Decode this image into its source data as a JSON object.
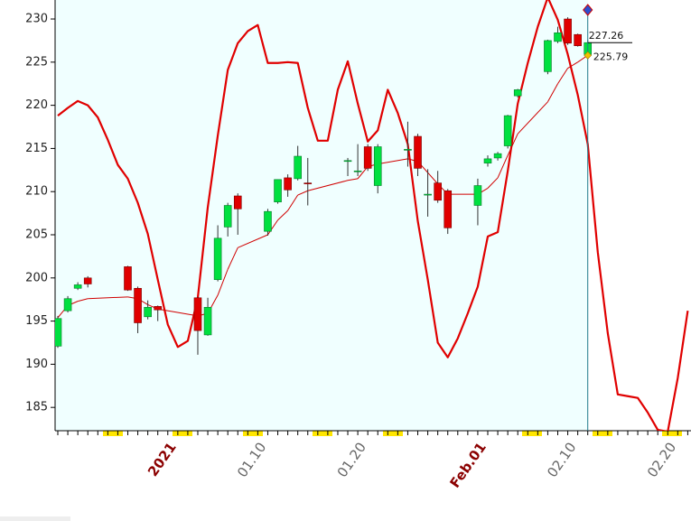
{
  "chart_data": {
    "type": "candlestick",
    "categories": [
      null,
      null,
      null,
      null,
      null,
      null,
      null,
      null,
      null,
      null,
      null,
      "2021",
      null,
      null,
      null,
      null,
      null,
      null,
      null,
      null,
      "01.10",
      null,
      null,
      null,
      null,
      null,
      null,
      null,
      null,
      null,
      "01.20",
      null,
      null,
      null,
      null,
      null,
      null,
      null,
      null,
      null,
      null,
      null,
      "Feb.01",
      null,
      null,
      null,
      null,
      null,
      null,
      null,
      null,
      "02.10",
      null,
      null,
      null,
      null,
      null,
      null,
      null,
      null,
      null,
      "02.20",
      null,
      null
    ],
    "highlight_labels": [
      "2021",
      "Feb.01"
    ],
    "open": [
      192.1,
      196.2,
      198.8,
      200.0,
      null,
      null,
      null,
      201.3,
      198.8,
      195.5,
      196.7,
      null,
      null,
      null,
      197.7,
      193.4,
      199.8,
      205.9,
      209.5,
      null,
      null,
      205.4,
      208.8,
      211.6,
      211.5,
      211.0,
      null,
      null,
      null,
      213.6,
      212.4,
      215.2,
      210.7,
      null,
      null,
      214.9,
      216.4,
      209.7,
      211.0,
      210.1,
      null,
      null,
      208.4,
      213.3,
      213.9,
      215.3,
      221.1,
      null,
      null,
      223.9,
      227.4,
      230.0,
      228.2,
      225.9,
      null,
      null,
      null,
      null,
      null,
      null,
      null,
      null,
      null,
      null
    ],
    "high": [
      195.6,
      197.9,
      199.5,
      200.2,
      null,
      null,
      null,
      201.4,
      199.0,
      197.4,
      196.8,
      null,
      null,
      null,
      197.8,
      197.7,
      206.1,
      208.7,
      209.8,
      null,
      null,
      208.0,
      211.4,
      212.0,
      215.3,
      213.9,
      null,
      null,
      null,
      213.9,
      215.5,
      215.5,
      215.5,
      null,
      null,
      218.1,
      216.7,
      212.6,
      212.4,
      210.3,
      null,
      null,
      211.5,
      214.2,
      214.6,
      218.9,
      221.9,
      null,
      null,
      227.6,
      229.1,
      230.2,
      228.3,
      227.6,
      null,
      null,
      null,
      null,
      null,
      null,
      null,
      null,
      null,
      null
    ],
    "low": [
      191.9,
      196.0,
      198.6,
      198.9,
      null,
      null,
      null,
      198.5,
      193.6,
      195.2,
      195.0,
      null,
      null,
      null,
      191.1,
      193.3,
      199.6,
      204.8,
      205.0,
      null,
      null,
      204.9,
      208.6,
      209.4,
      211.3,
      208.4,
      null,
      null,
      null,
      211.8,
      211.8,
      212.4,
      209.8,
      null,
      null,
      212.9,
      211.8,
      207.1,
      208.7,
      205.1,
      null,
      null,
      206.1,
      212.9,
      213.6,
      215.0,
      220.9,
      null,
      null,
      223.6,
      227.2,
      227.0,
      226.8,
      225.6,
      null,
      null,
      null,
      null,
      null,
      null,
      null,
      null,
      null,
      null
    ],
    "close": [
      195.3,
      197.6,
      199.2,
      199.3,
      null,
      null,
      null,
      198.6,
      194.8,
      196.6,
      196.3,
      null,
      null,
      null,
      193.9,
      196.6,
      204.6,
      208.4,
      208.0,
      null,
      null,
      207.7,
      211.4,
      210.2,
      214.1,
      210.9,
      null,
      null,
      null,
      213.6,
      212.4,
      212.7,
      215.2,
      null,
      null,
      214.9,
      212.7,
      209.7,
      209.0,
      205.8,
      null,
      null,
      210.7,
      213.8,
      214.4,
      218.8,
      221.8,
      null,
      null,
      227.5,
      228.4,
      227.2,
      226.9,
      227.26,
      null,
      null,
      null,
      null,
      null,
      null,
      null,
      null,
      null,
      null
    ],
    "ma": [
      195.4,
      196.8,
      197.3,
      197.6,
      null,
      null,
      null,
      197.8,
      197.6,
      196.9,
      196.4,
      null,
      null,
      null,
      195.6,
      195.9,
      198.0,
      201.0,
      203.5,
      null,
      null,
      205.0,
      206.7,
      207.8,
      209.6,
      210.1,
      null,
      null,
      null,
      211.3,
      211.5,
      212.9,
      213.2,
      null,
      null,
      213.8,
      213.5,
      212.2,
      210.9,
      209.7,
      null,
      null,
      209.7,
      210.4,
      211.6,
      214.2,
      216.7,
      null,
      null,
      220.4,
      222.5,
      224.3,
      225.0,
      225.79,
      null,
      null,
      null,
      null,
      null,
      null,
      null,
      null,
      null,
      null
    ],
    "line": [
      218.8,
      219.7,
      220.5,
      220.0,
      218.6,
      216.0,
      213.1,
      211.5,
      208.7,
      205.1,
      199.8,
      194.6,
      192.0,
      192.7,
      197.7,
      208.2,
      216.5,
      224.1,
      227.2,
      228.6,
      229.3,
      224.9,
      224.9,
      225.0,
      224.9,
      219.7,
      215.9,
      215.9,
      221.8,
      225.1,
      220.2,
      215.8,
      217.1,
      221.8,
      219.1,
      215.5,
      206.6,
      199.8,
      192.5,
      190.8,
      193.0,
      195.9,
      199.0,
      204.8,
      205.3,
      212.4,
      220.2,
      224.9,
      229.1,
      232.5,
      229.9,
      225.9,
      221.2,
      215.5,
      203.0,
      193.6,
      186.5,
      186.3,
      186.1,
      184.4,
      182.4,
      182.2,
      188.4,
      196.2
    ],
    "up_color": "#00e040",
    "down_color": "#e00000",
    "ma_color": "#d00000",
    "line_color": "#e00000",
    "ylim": [
      182.3,
      232.2
    ],
    "yticks": [
      185,
      190,
      195,
      200,
      205,
      210,
      215,
      220,
      225,
      230
    ],
    "cursor_index": 53
  }
}
